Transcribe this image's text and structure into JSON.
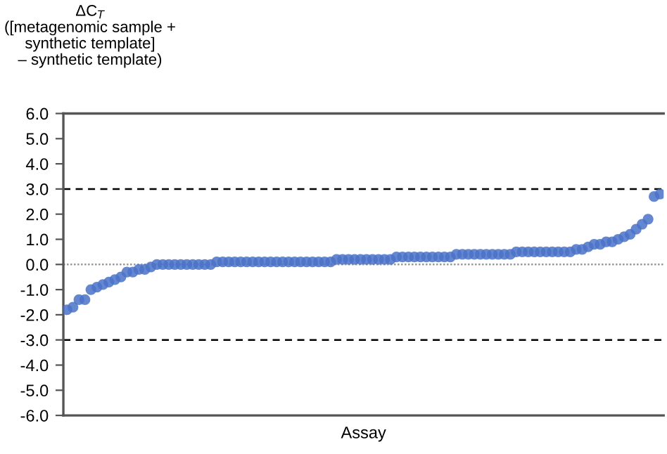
{
  "chart_data": {
    "type": "scatter",
    "ylabel": "ΔC$_{T}$\n([metagenomic sample +\nsynthetic template]\n– synthetic template)",
    "xlabel": "Assay",
    "categories": [
      null,
      null,
      null,
      null,
      null,
      null,
      null,
      null,
      null,
      null,
      null,
      null,
      null,
      null,
      null,
      null,
      null,
      null,
      null,
      null,
      null,
      null,
      null,
      null,
      null,
      null,
      null,
      null,
      null,
      null,
      null,
      null,
      null,
      null,
      null,
      null,
      null,
      null,
      null,
      null,
      null,
      null,
      null,
      null,
      null,
      null,
      null,
      null,
      null,
      null,
      null,
      null,
      null,
      null,
      null,
      null,
      null,
      null,
      null,
      null,
      null,
      null,
      null,
      null,
      null,
      null,
      null,
      null,
      null,
      null,
      null,
      null,
      null,
      null,
      null,
      null,
      null,
      null,
      null,
      null,
      null,
      null,
      null,
      null,
      null,
      null,
      null,
      null,
      null,
      null,
      null,
      null,
      null,
      null,
      null,
      null,
      null,
      null,
      null,
      null
    ],
    "series": [
      {
        "color": "#4a72c8",
        "values": [
          -1.8,
          -1.7,
          -1.4,
          -1.4,
          -1.0,
          -0.9,
          -0.8,
          -0.7,
          -0.6,
          -0.5,
          -0.3,
          -0.3,
          -0.2,
          -0.2,
          -0.1,
          0.0,
          0.0,
          0.0,
          0.0,
          0.0,
          0.0,
          0.0,
          0.0,
          0.0,
          0.0,
          0.1,
          0.1,
          0.1,
          0.1,
          0.1,
          0.1,
          0.1,
          0.1,
          0.1,
          0.1,
          0.1,
          0.1,
          0.1,
          0.1,
          0.1,
          0.1,
          0.1,
          0.1,
          0.1,
          0.1,
          0.2,
          0.2,
          0.2,
          0.2,
          0.2,
          0.2,
          0.2,
          0.2,
          0.2,
          0.2,
          0.3,
          0.3,
          0.3,
          0.3,
          0.3,
          0.3,
          0.3,
          0.3,
          0.3,
          0.3,
          0.4,
          0.4,
          0.4,
          0.4,
          0.4,
          0.4,
          0.4,
          0.4,
          0.4,
          0.4,
          0.5,
          0.5,
          0.5,
          0.5,
          0.5,
          0.5,
          0.5,
          0.5,
          0.5,
          0.5,
          0.6,
          0.6,
          0.7,
          0.8,
          0.8,
          0.9,
          0.9,
          1.0,
          1.1,
          1.2,
          1.4,
          1.6,
          1.8,
          2.7,
          2.8
        ]
      }
    ],
    "ylim": [
      -6,
      6
    ],
    "yticks": [
      {
        "value": 6,
        "label": "6.0"
      },
      {
        "value": 5,
        "label": "5.0"
      },
      {
        "value": 4,
        "label": "4.0"
      },
      {
        "value": 3,
        "label": "3.0"
      },
      {
        "value": 2,
        "label": "2.0"
      },
      {
        "value": 1,
        "label": "1.0"
      },
      {
        "value": 0,
        "label": "0.0"
      },
      {
        "value": -1,
        "label": "-1.0"
      },
      {
        "value": -2,
        "label": "-2.0"
      },
      {
        "value": -3,
        "label": "-3.0"
      },
      {
        "value": -4,
        "label": "-4.0"
      },
      {
        "value": -5,
        "label": "-5.0"
      },
      {
        "value": -6,
        "label": "-6.0"
      }
    ],
    "ref_lines": [
      {
        "axis": "y",
        "value": 3,
        "color": "#000000",
        "line_style": "dashed"
      },
      {
        "axis": "y",
        "value": -3,
        "color": "#000000",
        "line_style": "dashed"
      },
      {
        "axis": "y",
        "value": 0,
        "color": "#999999",
        "line_style": "dotted"
      }
    ],
    "marker": "circle",
    "grid": false,
    "legend": false
  }
}
